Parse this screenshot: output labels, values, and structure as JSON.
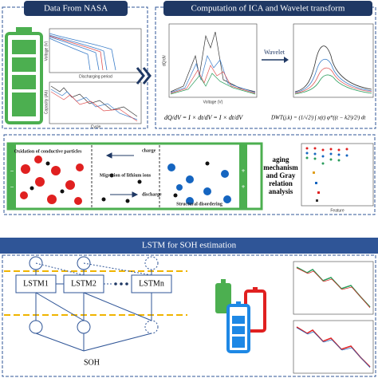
{
  "panels": {
    "data": {
      "title": "Data From NASA",
      "plot_top_xlabel": "Discharging period",
      "plot_top_ylabel": "Voltage (V)",
      "plot_bottom_xlabel": "Cycle",
      "plot_bottom_ylabel": "Capacity (Ah)"
    },
    "ica": {
      "title": "Computation of ICA and Wavelet transform",
      "arrow_label": "Wavelet",
      "xlabel": "Voltage (V)",
      "ylabel": "dQ/dV",
      "formula_ica": "dQ/dV = I × dt/dV = I × dt/dV",
      "formula_dwt": "DWT(j,k) = (1/√2ʲ) ∫ x(t) φ*((t − k2ʲ)/2ʲ) dt"
    },
    "aging": {
      "left_label": "Oxidation of conductive particles",
      "charge": "charge",
      "middle_label": "Migration of lithium ions",
      "discharge": "discharge",
      "right_label": "Structural disordering",
      "analysis": "aging mechanism and Gray relation analysis",
      "plot_xlabel": "Feature"
    },
    "lstm": {
      "title": "LSTM for SOH estimation",
      "cells": [
        "LSTM1",
        "LSTM2",
        "LSTMn"
      ],
      "output": "SOH"
    }
  }
}
